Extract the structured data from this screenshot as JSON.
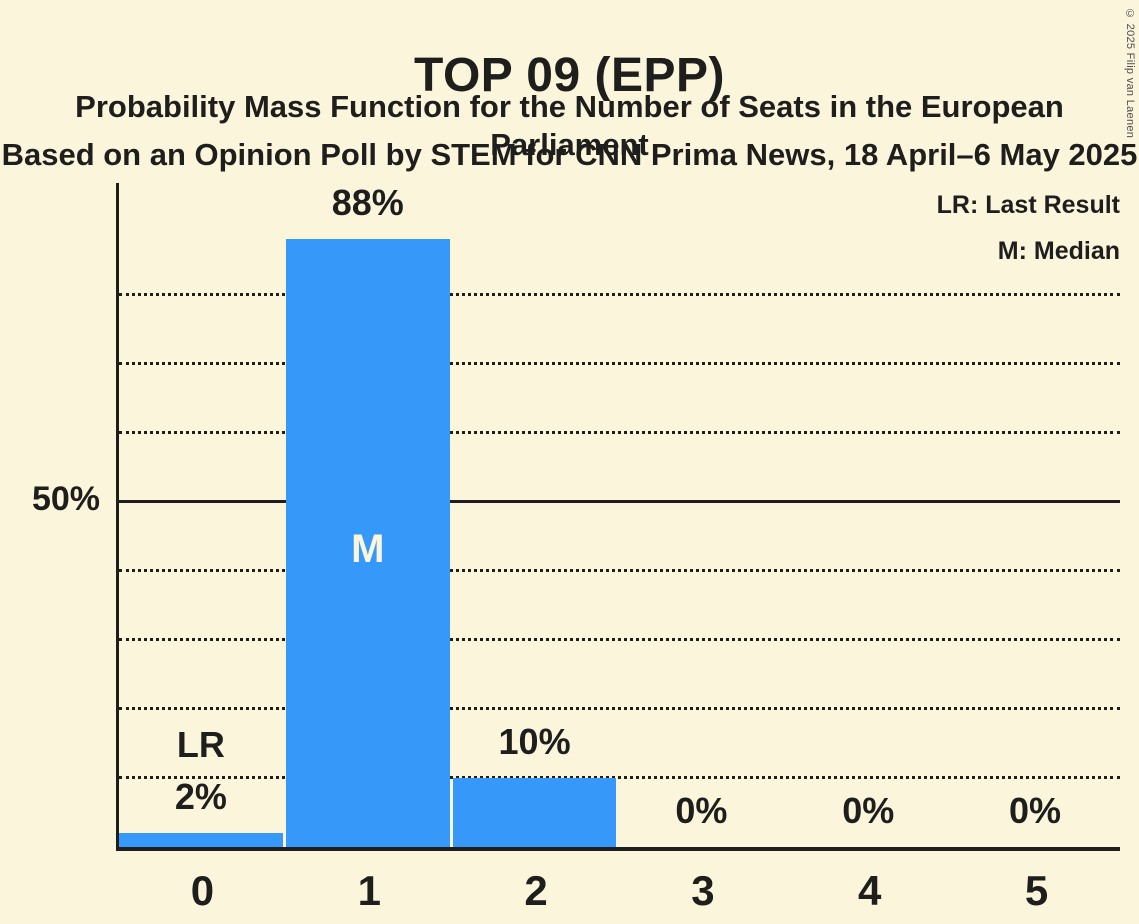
{
  "header": {
    "title": "TOP 09 (EPP)",
    "subtitle1": "Probability Mass Function for the Number of Seats in the European Parliament",
    "subtitle2": "Based on an Opinion Poll by STEM for CNN Prima News, 18 April–6 May 2025"
  },
  "legend": {
    "last_result": "LR: Last Result",
    "median": "M: Median"
  },
  "copyright": "© 2025 Filip van Laenen",
  "colors": {
    "background": "#FBF5DC",
    "bar": "#3699FA",
    "ink": "#1E1E1C",
    "copyright_gray": "#4D4D4D"
  },
  "chart_data": {
    "type": "bar",
    "title": "TOP 09 (EPP)",
    "categories": [
      "0",
      "1",
      "2",
      "3",
      "4",
      "5"
    ],
    "values": [
      2,
      88,
      10,
      0,
      0,
      0
    ],
    "bar_labels": [
      "2%",
      "88%",
      "10%",
      "0%",
      "0%",
      "0%"
    ],
    "xlabel": "",
    "ylabel": "",
    "ylim": [
      0,
      96
    ],
    "ytick": {
      "value": 50,
      "label": "50%"
    },
    "gridlines_percent": [
      10,
      20,
      30,
      40,
      50,
      60,
      70,
      80
    ],
    "solid_gridline_percent": 50,
    "grid": "horizontal dotted, solid line at 50%",
    "legend_position": "top-right",
    "annotations": {
      "last_result_label": "LR",
      "last_result_index": 0,
      "median_label": "M",
      "median_index": 1
    }
  }
}
